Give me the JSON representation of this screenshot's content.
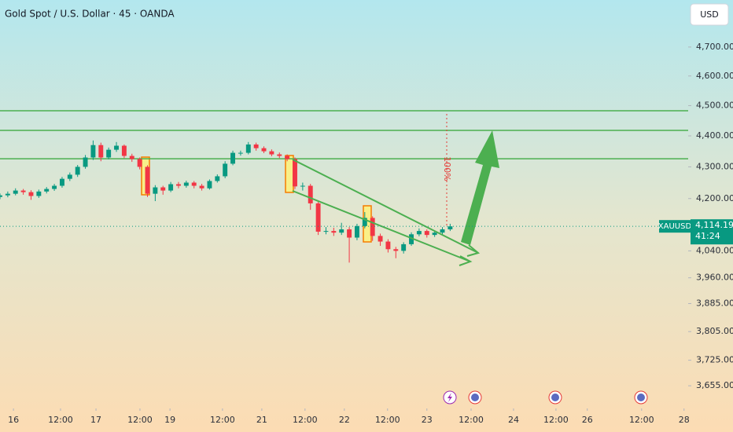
{
  "chart_data": {
    "type": "candlestick",
    "title": "Gold Spot / U.S. Dollar · 45 · OANDA",
    "currency_button": "USD",
    "log_scale": true,
    "grid": false,
    "up_color": "#089981",
    "down_color": "#f23645",
    "level_color": "#4caf50",
    "xlim": [
      0,
      266
    ],
    "ylim": [
      3594,
      4867
    ],
    "yticks": [
      {
        "value": 4700,
        "label": "4,700.000"
      },
      {
        "value": 4600,
        "label": "4,600.000"
      },
      {
        "value": 4500,
        "label": "4,500.000"
      },
      {
        "value": 4400,
        "label": "4,400.000"
      },
      {
        "value": 4300,
        "label": "4,300.000"
      },
      {
        "value": 4200,
        "label": "4,200.000"
      },
      {
        "value": 4040,
        "label": "4,040.000"
      },
      {
        "value": 3960,
        "label": "3,960.000"
      },
      {
        "value": 3885,
        "label": "3,885.000"
      },
      {
        "value": 3805,
        "label": "3,805.000"
      },
      {
        "value": 3725,
        "label": "3,725.000"
      },
      {
        "value": 3655,
        "label": "3,655.000"
      }
    ],
    "xticks": [
      {
        "value": 5.2,
        "label": "16"
      },
      {
        "value": 23.4,
        "label": "12:00"
      },
      {
        "value": 37.1,
        "label": "17"
      },
      {
        "value": 54.1,
        "label": "12:00"
      },
      {
        "value": 65.7,
        "label": "19"
      },
      {
        "value": 86,
        "label": "12:00"
      },
      {
        "value": 101.2,
        "label": "21"
      },
      {
        "value": 117.9,
        "label": "12:00"
      },
      {
        "value": 133.1,
        "label": "22"
      },
      {
        "value": 149.8,
        "label": "12:00"
      },
      {
        "value": 165,
        "label": "23"
      },
      {
        "value": 182.1,
        "label": "12:00"
      },
      {
        "value": 198.5,
        "label": "24"
      },
      {
        "value": 214.9,
        "label": "12:00"
      },
      {
        "value": 227,
        "label": "26"
      },
      {
        "value": 248,
        "label": "12:00"
      },
      {
        "value": 264.4,
        "label": "28"
      }
    ],
    "candles": {
      "x": [
        0,
        3,
        6,
        9,
        12,
        15,
        18,
        21,
        24,
        27,
        30,
        33,
        36,
        39,
        42,
        45,
        48,
        51,
        54,
        57,
        60,
        63,
        66,
        69,
        72,
        75,
        78,
        81,
        84,
        87,
        90,
        93,
        96,
        99,
        102,
        105,
        108,
        111,
        114,
        117,
        120,
        123,
        126,
        129,
        132,
        135,
        138,
        141,
        144,
        147,
        150,
        153,
        156,
        159,
        162,
        165,
        168,
        171,
        174
      ],
      "open": [
        4205,
        4210,
        4215,
        4225,
        4220,
        4208,
        4222,
        4230,
        4240,
        4262,
        4275,
        4300,
        4330,
        4370,
        4330,
        4355,
        4368,
        4335,
        4325,
        4300,
        4215,
        4235,
        4225,
        4245,
        4240,
        4250,
        4240,
        4232,
        4255,
        4270,
        4310,
        4345,
        4345,
        4372,
        4360,
        4350,
        4340,
        4335,
        4325,
        4238,
        4240,
        4185,
        4098,
        4100,
        4095,
        4105,
        4080,
        4115,
        4140,
        4085,
        4068,
        4045,
        4040,
        4060,
        4090,
        4100,
        4088,
        4095,
        4105
      ],
      "high": [
        4216,
        4222,
        4232,
        4230,
        4226,
        4228,
        4236,
        4246,
        4268,
        4282,
        4306,
        4338,
        4385,
        4378,
        4362,
        4380,
        4372,
        4342,
        4330,
        4305,
        4242,
        4240,
        4252,
        4252,
        4256,
        4255,
        4246,
        4260,
        4276,
        4318,
        4352,
        4352,
        4380,
        4378,
        4366,
        4356,
        4346,
        4340,
        4330,
        4250,
        4246,
        4190,
        4112,
        4110,
        4125,
        4112,
        4122,
        4158,
        4145,
        4092,
        4075,
        4052,
        4066,
        4096,
        4108,
        4105,
        4102,
        4112,
        4122
      ],
      "low": [
        4198,
        4204,
        4210,
        4212,
        4196,
        4202,
        4216,
        4224,
        4234,
        4255,
        4268,
        4294,
        4322,
        4318,
        4324,
        4348,
        4328,
        4316,
        4292,
        4205,
        4192,
        4212,
        4220,
        4232,
        4234,
        4232,
        4225,
        4228,
        4250,
        4264,
        4305,
        4336,
        4340,
        4352,
        4344,
        4334,
        4328,
        4318,
        4230,
        4225,
        4165,
        4088,
        4090,
        4085,
        4088,
        4005,
        4072,
        4108,
        4070,
        4055,
        4035,
        4018,
        4032,
        4055,
        4084,
        4080,
        4082,
        4088,
        4100
      ],
      "close": [
        4210,
        4215,
        4225,
        4220,
        4208,
        4222,
        4230,
        4240,
        4262,
        4275,
        4300,
        4330,
        4370,
        4330,
        4355,
        4368,
        4335,
        4325,
        4300,
        4215,
        4235,
        4225,
        4245,
        4240,
        4250,
        4240,
        4232,
        4255,
        4270,
        4310,
        4345,
        4345,
        4372,
        4360,
        4350,
        4340,
        4335,
        4325,
        4238,
        4240,
        4185,
        4098,
        4100,
        4095,
        4105,
        4080,
        4115,
        4140,
        4085,
        4068,
        4045,
        4040,
        4060,
        4090,
        4100,
        4088,
        4095,
        4105,
        4114.19
      ]
    },
    "levels": [
      4483,
      4418,
      4326
    ],
    "annotation": "100%",
    "symbol_label": "XAUUSD",
    "last_price": {
      "value": 4114.19,
      "label": "4,114.190"
    },
    "countdown": "41:24"
  }
}
